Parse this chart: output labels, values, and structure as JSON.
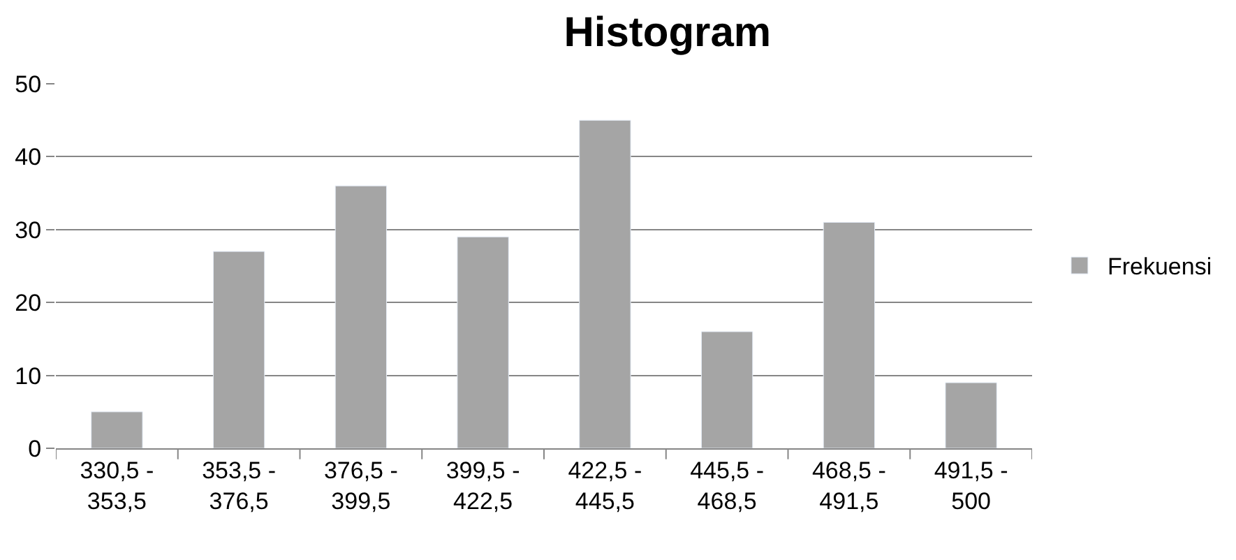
{
  "chart_data": {
    "type": "bar",
    "title": "Histogram",
    "categories": [
      "330,5 - 353,5",
      "353,5 - 376,5",
      "376,5 - 399,5",
      "399,5 - 422,5",
      "422,5 - 445,5",
      "445,5 - 468,5",
      "468,5 - 491,5",
      "491,5 - 500"
    ],
    "series": [
      {
        "name": "Frekuensi",
        "color": "#a5a5a5",
        "values": [
          5,
          27,
          36,
          29,
          45,
          16,
          31,
          9
        ]
      }
    ],
    "ylim": [
      0,
      50
    ],
    "yticks": [
      0,
      10,
      20,
      30,
      40,
      50
    ],
    "grid": "y",
    "legend": "right"
  }
}
